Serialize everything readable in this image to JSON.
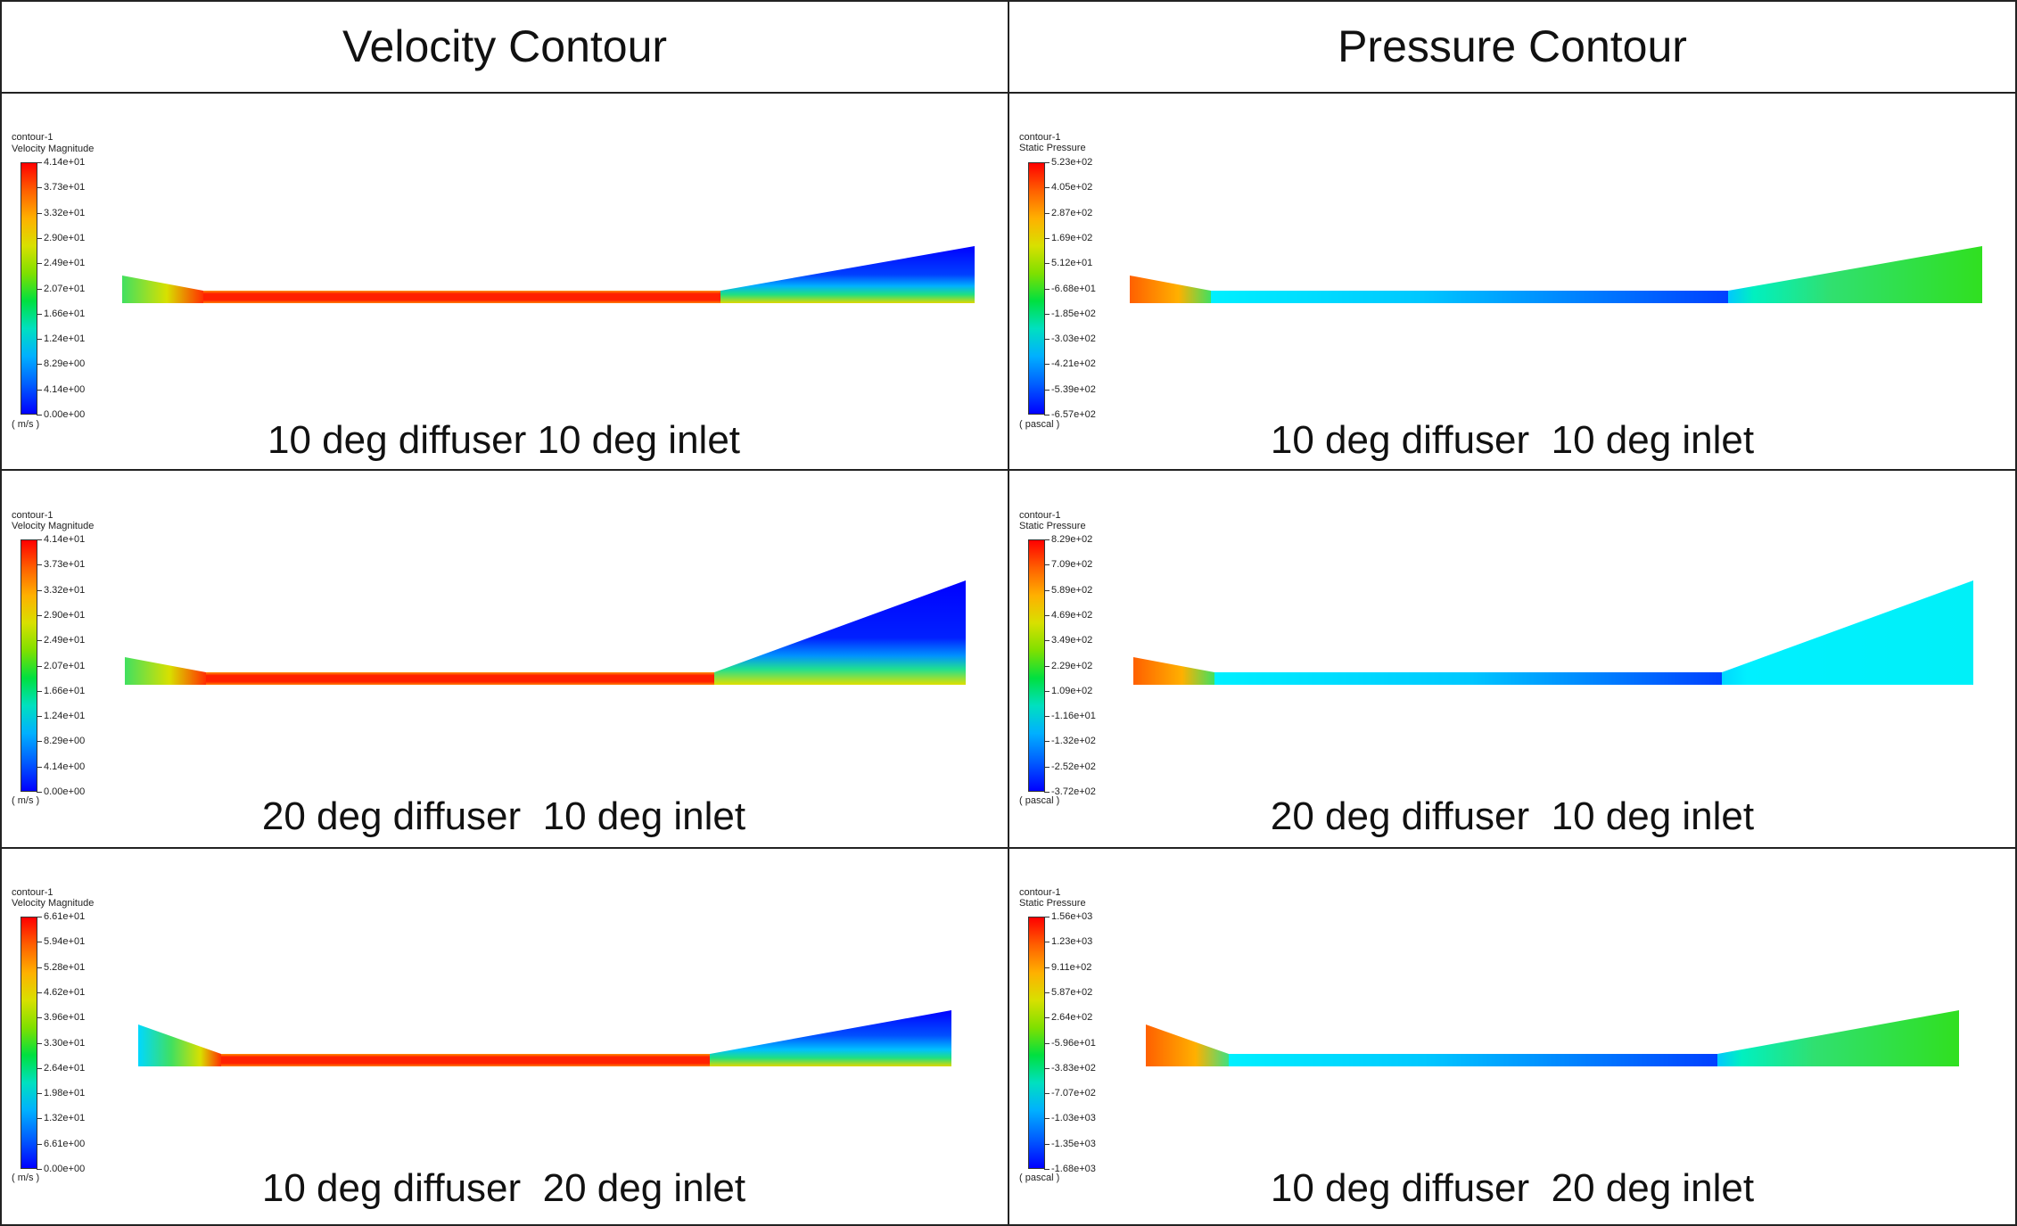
{
  "headers": {
    "left": "Velocity Contour",
    "right": "Pressure Contour"
  },
  "legend_common": {
    "name": "contour-1"
  },
  "rows": [
    {
      "velocity": {
        "legend_label": "Velocity Magnitude",
        "units": "( m/s )",
        "ticks": [
          "4.14e+01",
          "3.73e+01",
          "3.32e+01",
          "2.90e+01",
          "2.49e+01",
          "2.07e+01",
          "1.66e+01",
          "1.24e+01",
          "8.29e+00",
          "4.14e+00",
          "0.00e+00"
        ],
        "caption": "10 deg diffuser 10 deg inlet"
      },
      "pressure": {
        "legend_label": "Static Pressure",
        "units": "( pascal )",
        "ticks": [
          "5.23e+02",
          "4.05e+02",
          "2.87e+02",
          "1.69e+02",
          "5.12e+01",
          "-6.68e+01",
          "-1.85e+02",
          "-3.03e+02",
          "-4.21e+02",
          "-5.39e+02",
          "-6.57e+02"
        ],
        "caption": "10 deg diffuser  10 deg inlet"
      }
    },
    {
      "velocity": {
        "legend_label": "Velocity Magnitude",
        "units": "( m/s )",
        "ticks": [
          "4.14e+01",
          "3.73e+01",
          "3.32e+01",
          "2.90e+01",
          "2.49e+01",
          "2.07e+01",
          "1.66e+01",
          "1.24e+01",
          "8.29e+00",
          "4.14e+00",
          "0.00e+00"
        ],
        "caption": "20 deg diffuser  10 deg inlet"
      },
      "pressure": {
        "legend_label": "Static Pressure",
        "units": "( pascal )",
        "ticks": [
          "8.29e+02",
          "7.09e+02",
          "5.89e+02",
          "4.69e+02",
          "3.49e+02",
          "2.29e+02",
          "1.09e+02",
          "-1.16e+01",
          "-1.32e+02",
          "-2.52e+02",
          "-3.72e+02"
        ],
        "caption": "20 deg diffuser  10 deg inlet"
      }
    },
    {
      "velocity": {
        "legend_label": "Velocity Magnitude",
        "units": "( m/s )",
        "ticks": [
          "6.61e+01",
          "5.94e+01",
          "5.28e+01",
          "4.62e+01",
          "3.96e+01",
          "3.30e+01",
          "2.64e+01",
          "1.98e+01",
          "1.32e+01",
          "6.61e+00",
          "0.00e+00"
        ],
        "caption": "10 deg diffuser  20 deg inlet"
      },
      "pressure": {
        "legend_label": "Static Pressure",
        "units": "( pascal )",
        "ticks": [
          "1.56e+03",
          "1.23e+03",
          "9.11e+02",
          "5.87e+02",
          "2.64e+02",
          "-5.96e+01",
          "-3.83e+02",
          "-7.07e+02",
          "-1.03e+03",
          "-1.35e+03",
          "-1.68e+03"
        ],
        "caption": "10 deg diffuser  20 deg inlet"
      }
    }
  ],
  "colors": {
    "border": "#222222",
    "max": "#ff0000",
    "min": "#0000ff"
  }
}
